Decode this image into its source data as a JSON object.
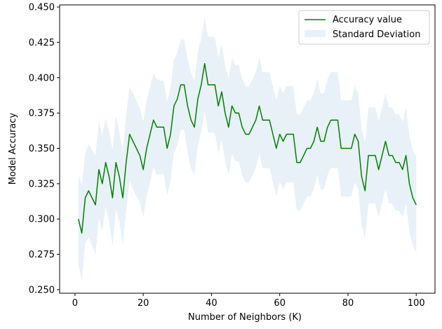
{
  "chart_data": {
    "type": "line",
    "title": "",
    "xlabel": "Number of Neighbors (K)",
    "ylabel": "Model Accuracy",
    "xlim": [
      -4.5,
      105.5
    ],
    "ylim": [
      0.2475,
      0.4515
    ],
    "xticks": [
      0,
      20,
      40,
      60,
      80,
      100
    ],
    "yticks": [
      0.25,
      0.275,
      0.3,
      0.325,
      0.35,
      0.375,
      0.4,
      0.425,
      0.45
    ],
    "grid": false,
    "legend_position": "top-right",
    "series": [
      {
        "name": "Accuracy value",
        "kind": "line",
        "color": "#008000",
        "x": [
          1,
          2,
          3,
          4,
          5,
          6,
          7,
          8,
          9,
          10,
          11,
          12,
          13,
          14,
          15,
          16,
          17,
          18,
          19,
          20,
          21,
          22,
          23,
          24,
          25,
          26,
          27,
          28,
          29,
          30,
          31,
          32,
          33,
          34,
          35,
          36,
          37,
          38,
          39,
          40,
          41,
          42,
          43,
          44,
          45,
          46,
          47,
          48,
          49,
          50,
          51,
          52,
          53,
          54,
          55,
          56,
          57,
          58,
          59,
          60,
          61,
          62,
          63,
          64,
          65,
          66,
          67,
          68,
          69,
          70,
          71,
          72,
          73,
          74,
          75,
          76,
          77,
          78,
          79,
          80,
          81,
          82,
          83,
          84,
          85,
          86,
          87,
          88,
          89,
          90,
          91,
          92,
          93,
          94,
          95,
          96,
          97,
          98,
          99,
          100
        ],
        "y": [
          0.3,
          0.29,
          0.315,
          0.32,
          0.315,
          0.31,
          0.335,
          0.325,
          0.34,
          0.33,
          0.315,
          0.34,
          0.33,
          0.315,
          0.34,
          0.36,
          0.355,
          0.35,
          0.345,
          0.335,
          0.35,
          0.36,
          0.37,
          0.365,
          0.365,
          0.365,
          0.35,
          0.36,
          0.38,
          0.385,
          0.395,
          0.395,
          0.38,
          0.37,
          0.365,
          0.385,
          0.395,
          0.41,
          0.395,
          0.395,
          0.395,
          0.38,
          0.39,
          0.375,
          0.365,
          0.38,
          0.375,
          0.375,
          0.365,
          0.36,
          0.36,
          0.365,
          0.37,
          0.38,
          0.37,
          0.37,
          0.37,
          0.36,
          0.35,
          0.36,
          0.355,
          0.36,
          0.36,
          0.36,
          0.34,
          0.34,
          0.345,
          0.35,
          0.35,
          0.355,
          0.365,
          0.355,
          0.355,
          0.365,
          0.37,
          0.37,
          0.37,
          0.35,
          0.35,
          0.35,
          0.35,
          0.36,
          0.355,
          0.33,
          0.32,
          0.345,
          0.345,
          0.345,
          0.335,
          0.345,
          0.355,
          0.345,
          0.345,
          0.34,
          0.34,
          0.335,
          0.345,
          0.325,
          0.315,
          0.31
        ]
      },
      {
        "name": "Standard Deviation",
        "kind": "band",
        "color": "#1f77b4",
        "opacity": 0.1,
        "half_width": [
          0.032,
          0.034,
          0.032,
          0.033,
          0.034,
          0.035,
          0.034,
          0.034,
          0.031,
          0.032,
          0.034,
          0.033,
          0.032,
          0.033,
          0.034,
          0.033,
          0.034,
          0.034,
          0.033,
          0.034,
          0.034,
          0.034,
          0.033,
          0.034,
          0.033,
          0.033,
          0.033,
          0.033,
          0.033,
          0.033,
          0.032,
          0.032,
          0.033,
          0.034,
          0.033,
          0.033,
          0.033,
          0.033,
          0.034,
          0.034,
          0.034,
          0.034,
          0.034,
          0.034,
          0.034,
          0.034,
          0.034,
          0.034,
          0.034,
          0.034,
          0.034,
          0.034,
          0.034,
          0.034,
          0.034,
          0.034,
          0.034,
          0.034,
          0.034,
          0.034,
          0.034,
          0.034,
          0.034,
          0.034,
          0.034,
          0.034,
          0.034,
          0.034,
          0.034,
          0.034,
          0.034,
          0.034,
          0.034,
          0.034,
          0.034,
          0.034,
          0.034,
          0.034,
          0.034,
          0.034,
          0.034,
          0.034,
          0.034,
          0.034,
          0.034,
          0.034,
          0.034,
          0.034,
          0.034,
          0.034,
          0.034,
          0.034,
          0.034,
          0.034,
          0.034,
          0.034,
          0.034,
          0.034,
          0.034,
          0.034
        ]
      }
    ],
    "legend": [
      {
        "label": "Accuracy value",
        "swatch": "line",
        "color": "#008000"
      },
      {
        "label": "Standard Deviation",
        "swatch": "patch",
        "color": "#1f77b4"
      }
    ]
  }
}
